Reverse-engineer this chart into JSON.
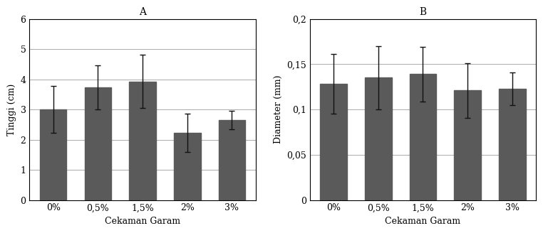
{
  "chart_A": {
    "title": "A",
    "categories": [
      "0%",
      "0,5%",
      "1,5%",
      "2%",
      "3%"
    ],
    "values": [
      3.0,
      3.73,
      3.93,
      2.23,
      2.65
    ],
    "errors": [
      0.78,
      0.73,
      0.88,
      0.63,
      0.3
    ],
    "ylabel": "Tinggi (cm)",
    "xlabel": "Cekaman Garam",
    "ylim": [
      0,
      6
    ],
    "yticks": [
      0,
      1,
      2,
      3,
      4,
      5,
      6
    ],
    "ytick_labels": [
      "0",
      "1",
      "2",
      "3",
      "4",
      "5",
      "6"
    ]
  },
  "chart_B": {
    "title": "B",
    "categories": [
      "0%",
      "0,5%",
      "1,5%",
      "2%",
      "3%"
    ],
    "values": [
      0.128,
      0.135,
      0.139,
      0.121,
      0.123
    ],
    "errors": [
      0.033,
      0.035,
      0.03,
      0.03,
      0.018
    ],
    "ylabel": "Diameter (mm)",
    "xlabel": "Cekaman Garam",
    "ylim": [
      0,
      0.2
    ],
    "yticks": [
      0,
      0.05,
      0.1,
      0.15,
      0.2
    ],
    "ytick_labels": [
      "0",
      "0,05",
      "0,1",
      "0,15",
      "0,2"
    ]
  },
  "bar_color": "#5a5a5a",
  "bar_width": 0.6,
  "error_capsize": 3,
  "error_color": "#111111",
  "error_linewidth": 1.0,
  "bg_color": "#ffffff",
  "grid_color": "#aaaaaa",
  "font_family": "serif",
  "font_size": 9,
  "title_font_size": 10,
  "axis_label_font_size": 9,
  "figsize": [
    7.62,
    3.28
  ],
  "dpi": 100
}
